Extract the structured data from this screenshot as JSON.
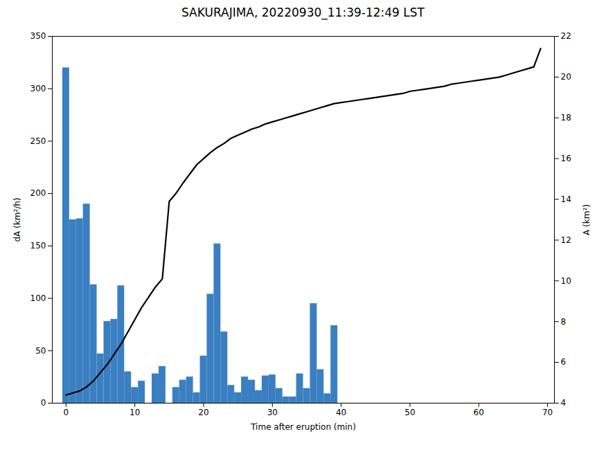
{
  "chart_data": {
    "type": "bar",
    "title": "SAKURAJIMA, 20220930_11:39-12:49 LST",
    "xlabel": "Time after eruption (min)",
    "ylabel": "dA (km²/h)",
    "y2label": "A (km²)",
    "x": [
      0,
      1,
      2,
      3,
      4,
      5,
      6,
      7,
      8,
      9,
      10,
      11,
      12,
      13,
      14,
      15,
      16,
      17,
      18,
      19,
      20,
      21,
      22,
      23,
      24,
      25,
      26,
      27,
      28,
      29,
      30,
      31,
      32,
      33,
      34,
      35,
      36,
      37,
      38,
      39,
      40,
      41,
      42,
      43,
      44,
      45,
      46,
      47,
      48,
      49,
      50,
      51,
      52,
      53,
      54,
      55,
      56,
      57,
      58,
      59,
      60,
      61,
      62,
      63,
      64,
      65,
      66,
      67,
      68,
      69
    ],
    "series": [
      {
        "type": "bar",
        "color": "#3a7fc1",
        "values": [
          320,
          175,
          176,
          190,
          113,
          47,
          78,
          80,
          112,
          30,
          15,
          21,
          0,
          28,
          35,
          0,
          15,
          22,
          25,
          10,
          45,
          104,
          152,
          68,
          17,
          10,
          25,
          22,
          12,
          26,
          27,
          14,
          6,
          6,
          28,
          14,
          95,
          32,
          9,
          74,
          0,
          0,
          0,
          0,
          0,
          0,
          0,
          0,
          0,
          0,
          0,
          0,
          0,
          0,
          0,
          0,
          0,
          0,
          0,
          0,
          0,
          0,
          0,
          0,
          0,
          0,
          0,
          0,
          0,
          0
        ]
      },
      {
        "type": "line",
        "axis": "y2",
        "color": "black",
        "values": [
          4.4,
          4.5,
          4.6,
          4.8,
          5.1,
          5.5,
          5.9,
          6.4,
          6.9,
          7.5,
          8.1,
          8.7,
          9.2,
          9.7,
          10.1,
          13.9,
          14.3,
          14.8,
          15.25,
          15.7,
          16.0,
          16.3,
          16.55,
          16.75,
          17.0,
          17.15,
          17.3,
          17.45,
          17.55,
          17.7,
          17.8,
          17.9,
          18.0,
          18.1,
          18.2,
          18.3,
          18.4,
          18.5,
          18.6,
          18.7,
          18.75,
          18.8,
          18.85,
          18.9,
          18.95,
          19.0,
          19.05,
          19.1,
          19.15,
          19.2,
          19.3,
          19.35,
          19.4,
          19.45,
          19.5,
          19.55,
          19.65,
          19.7,
          19.75,
          19.8,
          19.85,
          19.9,
          19.95,
          20.0,
          20.1,
          20.2,
          20.3,
          20.4,
          20.5,
          21.4
        ]
      }
    ],
    "xlim": [
      -2,
      71
    ],
    "xticks": [
      0,
      10,
      20,
      30,
      40,
      50,
      60,
      70
    ],
    "ylim": [
      0,
      350
    ],
    "yticks": [
      0,
      50,
      100,
      150,
      200,
      250,
      300,
      350
    ],
    "y2lim": [
      4,
      22
    ],
    "y2ticks": [
      4,
      6,
      8,
      10,
      12,
      14,
      16,
      18,
      20,
      22
    ],
    "grid": false
  }
}
